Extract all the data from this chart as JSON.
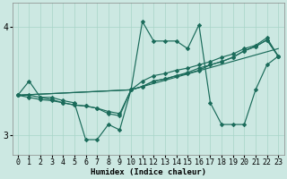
{
  "xlabel": "Humidex (Indice chaleur)",
  "bg_color": "#cce8e2",
  "line_color": "#1a6b5a",
  "grid_color": "#a8d4c8",
  "xlim": [
    -0.5,
    23.5
  ],
  "ylim": [
    2.82,
    4.22
  ],
  "yticks": [
    3,
    4
  ],
  "xticks": [
    0,
    1,
    2,
    3,
    4,
    5,
    6,
    7,
    8,
    9,
    10,
    11,
    12,
    13,
    14,
    15,
    16,
    17,
    18,
    19,
    20,
    21,
    22,
    23
  ],
  "line1_x": [
    0,
    1,
    2,
    3,
    4,
    5,
    6,
    7,
    8,
    9,
    10,
    11,
    12,
    13,
    14,
    15,
    16,
    17,
    18,
    19,
    20,
    21,
    22,
    23
  ],
  "line1_y": [
    3.37,
    3.5,
    3.35,
    3.35,
    3.32,
    3.3,
    2.96,
    2.96,
    3.1,
    3.05,
    3.42,
    4.05,
    3.87,
    3.87,
    3.87,
    3.8,
    4.02,
    3.3,
    3.1,
    3.1,
    3.1,
    3.42,
    3.65,
    3.73
  ],
  "line2_x": [
    0,
    1,
    2,
    3,
    4,
    5,
    6,
    7,
    8,
    9,
    10,
    11,
    12,
    13,
    14,
    15,
    16,
    17,
    18,
    19,
    20,
    21,
    22,
    23
  ],
  "line2_y": [
    3.37,
    3.37,
    3.35,
    3.33,
    3.3,
    3.28,
    3.27,
    3.25,
    3.22,
    3.2,
    3.42,
    3.5,
    3.55,
    3.57,
    3.6,
    3.62,
    3.65,
    3.68,
    3.72,
    3.75,
    3.8,
    3.83,
    3.9,
    3.73
  ],
  "line3_x": [
    0,
    1,
    2,
    3,
    4,
    5,
    6,
    7,
    8,
    9,
    10,
    11,
    12,
    13,
    14,
    15,
    16,
    17,
    18,
    19,
    20,
    21,
    22,
    23
  ],
  "line3_y": [
    3.37,
    3.35,
    3.33,
    3.32,
    3.3,
    3.28,
    3.27,
    3.25,
    3.2,
    3.18,
    3.42,
    3.45,
    3.5,
    3.52,
    3.55,
    3.57,
    3.6,
    3.65,
    3.68,
    3.72,
    3.78,
    3.82,
    3.88,
    3.73
  ],
  "line4_x": [
    0,
    10,
    11,
    12,
    13,
    14,
    15,
    16,
    17,
    18,
    19,
    20,
    21,
    22,
    23
  ],
  "line4_y": [
    3.37,
    3.42,
    3.45,
    3.5,
    3.52,
    3.55,
    3.58,
    3.62,
    3.65,
    3.68,
    3.72,
    3.78,
    3.82,
    3.88,
    3.73
  ],
  "line5_x": [
    0,
    10,
    23
  ],
  "line5_y": [
    3.37,
    3.42,
    3.8
  ]
}
